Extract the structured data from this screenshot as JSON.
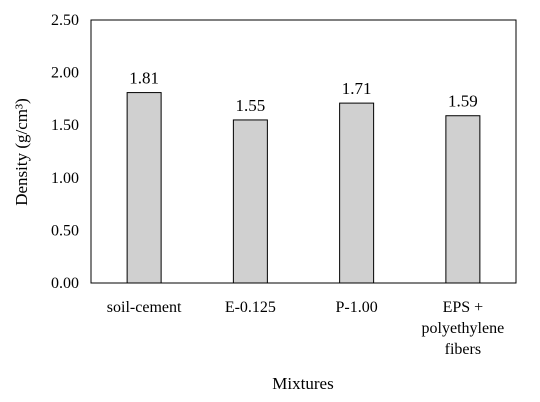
{
  "chart_data": {
    "type": "bar",
    "categories": [
      [
        "soil-cement"
      ],
      [
        "E-0.125"
      ],
      [
        "P-1.00"
      ],
      [
        "EPS +",
        "polyethylene",
        "fibers"
      ]
    ],
    "series": [
      {
        "values": [
          1.81,
          1.55,
          1.71,
          1.59
        ],
        "data_labels": [
          "1.81",
          "1.55",
          "1.71",
          "1.59"
        ]
      }
    ],
    "ylim": [
      0,
      2.5
    ],
    "yticks": [
      0.0,
      0.5,
      1.0,
      1.5,
      2.0,
      2.5
    ],
    "ytick_labels": [
      "0.00",
      "0.50",
      "1.00",
      "1.50",
      "2.00",
      "2.50"
    ],
    "xlabel": "Mixtures",
    "ylabel": "Density (g/cm³)",
    "grid": false,
    "legend": "none",
    "bar_color": "#d0d0d0",
    "edge_color": "#000000"
  }
}
